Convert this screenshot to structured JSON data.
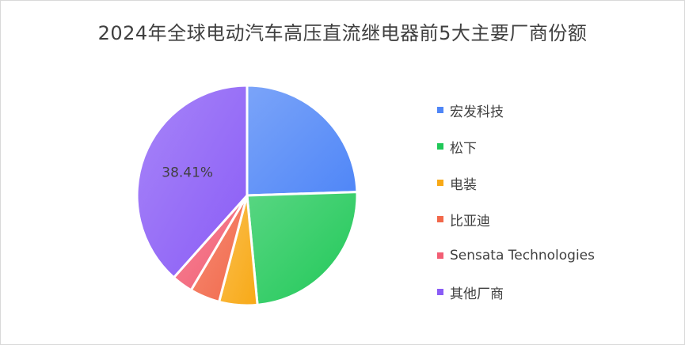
{
  "chart_data": {
    "type": "pie",
    "title": "2024年全球电动汽车高压直流继电器前5大主要厂商份额",
    "categories": [
      "宏发科技",
      "松下",
      "电装",
      "比亚迪",
      "Sensata Technologies",
      "其他厂商"
    ],
    "values": [
      24.5,
      24.0,
      5.6,
      4.4,
      3.1,
      38.41
    ],
    "colors": [
      "#4f86f7",
      "#20c858",
      "#f8a916",
      "#f2684a",
      "#f25e74",
      "#8a5cf6"
    ],
    "data_labels": [
      {
        "category": "其他厂商",
        "text": "38.41%"
      }
    ],
    "legend_position": "right"
  }
}
